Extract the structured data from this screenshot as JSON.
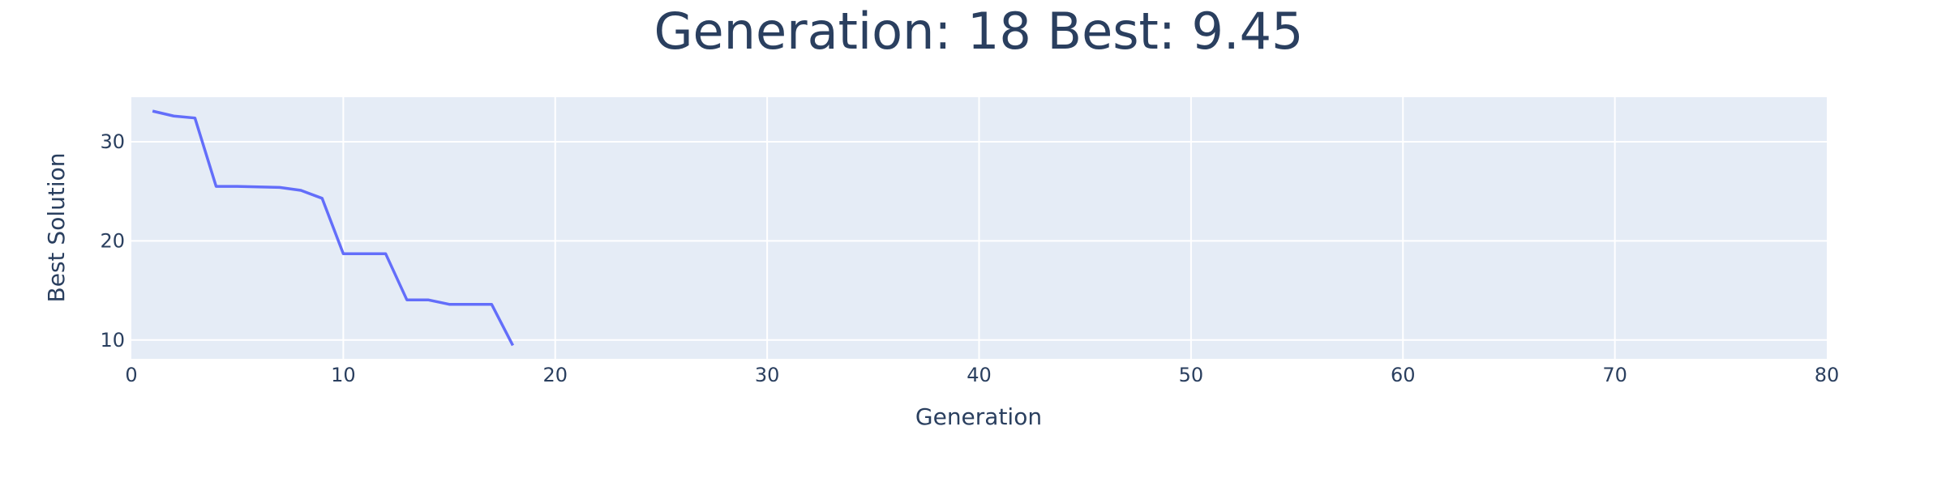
{
  "chart_data": {
    "type": "line",
    "title": "Generation: 18 Best: 9.45",
    "xlabel": "Generation",
    "ylabel": "Best Solution",
    "xlim": [
      0,
      80
    ],
    "ylim": [
      8.1,
      34.5
    ],
    "xticks": [
      0,
      10,
      20,
      30,
      40,
      50,
      60,
      70,
      80
    ],
    "yticks": [
      10,
      20,
      30
    ],
    "grid": true,
    "colors": {
      "plot_background": "#e5ecf6",
      "grid": "#ffffff",
      "line": "#636efa",
      "text": "#2a3f5f"
    },
    "series": [
      {
        "x": [
          1,
          2,
          3,
          4,
          5,
          6,
          7,
          8,
          9,
          10,
          11,
          12,
          13,
          14,
          15,
          16,
          17,
          18
        ],
        "y": [
          33.1,
          32.6,
          32.4,
          25.5,
          25.5,
          25.45,
          25.4,
          25.1,
          24.3,
          18.7,
          18.7,
          18.7,
          14.05,
          14.05,
          13.6,
          13.6,
          13.6,
          9.45
        ]
      }
    ]
  }
}
